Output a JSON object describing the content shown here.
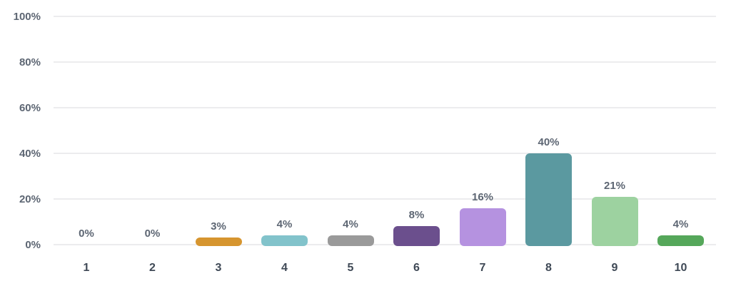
{
  "chart_data": {
    "type": "bar",
    "categories": [
      "1",
      "2",
      "3",
      "4",
      "5",
      "6",
      "7",
      "8",
      "9",
      "10"
    ],
    "values": [
      0,
      0,
      3,
      4,
      4,
      8,
      16,
      40,
      21,
      4
    ],
    "value_labels": [
      "0%",
      "0%",
      "3%",
      "4%",
      "4%",
      "8%",
      "16%",
      "40%",
      "21%",
      "4%"
    ],
    "bar_colors": [
      null,
      null,
      "#d6952f",
      "#82c3cb",
      "#9a9a9a",
      "#6b4f8d",
      "#b592e0",
      "#5b99a0",
      "#9dd2a0",
      "#55a75a"
    ],
    "y_ticks": [
      "0%",
      "20%",
      "40%",
      "60%",
      "80%",
      "100%"
    ],
    "ylim": [
      0,
      100
    ],
    "grid": true,
    "legend": false
  },
  "colors": {
    "background": "#ffffff",
    "grid": "#ececee",
    "y_label": "#5d6673",
    "x_label": "#3f4956",
    "value_label": "#5d6673"
  }
}
